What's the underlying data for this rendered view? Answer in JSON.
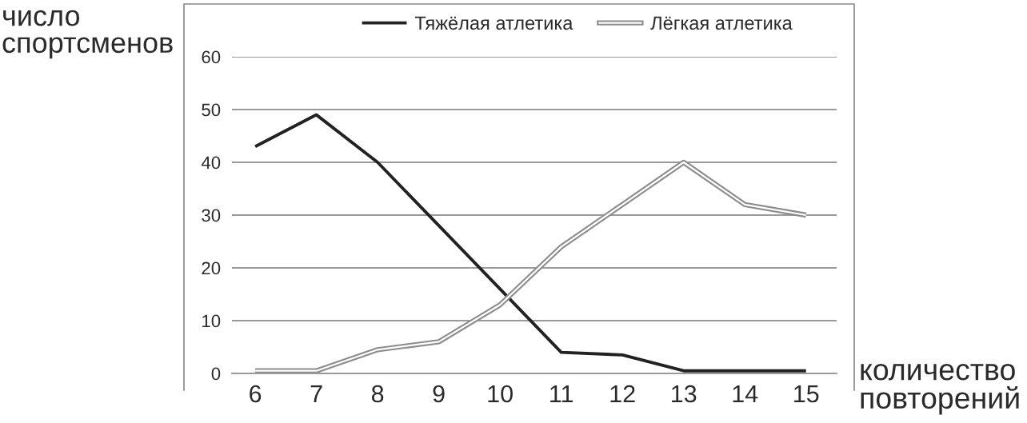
{
  "chart_data": {
    "type": "line",
    "xlabel": "количество\nповторений",
    "ylabel": "число\nспортсменов",
    "categories": [
      "6",
      "7",
      "8",
      "9",
      "10",
      "11",
      "12",
      "13",
      "14",
      "15"
    ],
    "series": [
      {
        "name": "Тяжёлая атлетика",
        "color": "#222222",
        "values": [
          43,
          49,
          40,
          28,
          16,
          4,
          3.5,
          0.5,
          0.5,
          0.5
        ]
      },
      {
        "name": "Лёгкая атлетика",
        "color": "#8c8c8c",
        "values": [
          0.5,
          0.5,
          4.5,
          6,
          13,
          24,
          32,
          40,
          32,
          30
        ]
      }
    ],
    "ylim": [
      0,
      60
    ],
    "yticks": [
      0,
      10,
      20,
      30,
      40,
      50,
      60
    ],
    "grid": "y",
    "legend": "top right",
    "marker": "none",
    "line_style": "solid"
  }
}
